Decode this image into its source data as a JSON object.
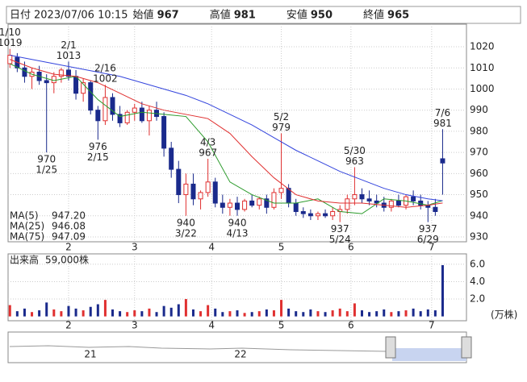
{
  "header": [
    {
      "label": "日付",
      "value": "2023/07/06 10:15"
    },
    {
      "label": "始値",
      "value": 967
    },
    {
      "label": "高値",
      "value": 981
    },
    {
      "label": "安値",
      "value": 950
    },
    {
      "label": "終値",
      "value": 965
    }
  ],
  "chart_data": [
    {
      "type": "candlestick",
      "ylim": [
        927.7,
        1030.7
      ],
      "yticks": [
        930,
        940,
        950,
        960,
        970,
        980,
        990,
        1000,
        1010,
        1020
      ],
      "xlim": [
        -0.5,
        124.5
      ],
      "xticks": [
        {
          "value": 16,
          "label": "2"
        },
        {
          "value": 34,
          "label": "3"
        },
        {
          "value": 55,
          "label": "4"
        },
        {
          "value": 74,
          "label": "5"
        },
        {
          "value": 93,
          "label": "6"
        },
        {
          "value": 115,
          "label": "7"
        }
      ],
      "up_color": "#e03030",
      "down_color": "#1a2a8c",
      "x": [
        0,
        2,
        4,
        6,
        8,
        10,
        12,
        14,
        16,
        18,
        20,
        22,
        24,
        26,
        28,
        30,
        32,
        34,
        36,
        38,
        40,
        42,
        44,
        46,
        48,
        50,
        52,
        54,
        56,
        58,
        60,
        62,
        64,
        66,
        68,
        70,
        72,
        74,
        76,
        78,
        80,
        82,
        84,
        86,
        88,
        90,
        92,
        94,
        96,
        98,
        100,
        102,
        104,
        106,
        108,
        110,
        112,
        114,
        116,
        118
      ],
      "open": [
        1012,
        1015,
        1010,
        1006,
        1008,
        1004,
        1003,
        1006,
        1009,
        1006,
        998,
        1003,
        990,
        985,
        996,
        988,
        984,
        989,
        991,
        985,
        990,
        987,
        972,
        962,
        950,
        955,
        948,
        951,
        956,
        946,
        944,
        946,
        943,
        947,
        945,
        948,
        944,
        951,
        953,
        946,
        942,
        941,
        940,
        941,
        940,
        942,
        943,
        948,
        950,
        948,
        947,
        946,
        944,
        947,
        945,
        949,
        947,
        945,
        944,
        967
      ],
      "high": [
        1019,
        1017,
        1013,
        1010,
        1011,
        1007,
        1008,
        1010,
        1013,
        1009,
        1005,
        1004,
        992,
        1002,
        998,
        992,
        990,
        993,
        994,
        992,
        994,
        989,
        975,
        966,
        960,
        960,
        952,
        967,
        958,
        950,
        948,
        949,
        948,
        950,
        949,
        950,
        953,
        979,
        955,
        948,
        944,
        943,
        942,
        943,
        944,
        945,
        950,
        963,
        953,
        952,
        950,
        949,
        948,
        950,
        950,
        952,
        950,
        947,
        948,
        981
      ],
      "low": [
        1010,
        1008,
        1003,
        1000,
        1002,
        970,
        998,
        1003,
        1004,
        995,
        994,
        988,
        976,
        983,
        985,
        982,
        983,
        985,
        984,
        978,
        985,
        968,
        958,
        946,
        940,
        945,
        943,
        949,
        944,
        941,
        940,
        940,
        942,
        944,
        943,
        941,
        943,
        948,
        944,
        940,
        939,
        938,
        938,
        939,
        938,
        937,
        941,
        945,
        946,
        945,
        944,
        942,
        942,
        944,
        943,
        945,
        943,
        937,
        940,
        950
      ],
      "close": [
        1016,
        1010,
        1006,
        1008,
        1004,
        1003,
        1006,
        1009,
        1006,
        998,
        1003,
        990,
        985,
        996,
        988,
        984,
        989,
        991,
        985,
        990,
        987,
        972,
        962,
        950,
        955,
        948,
        951,
        956,
        946,
        944,
        946,
        943,
        947,
        945,
        948,
        944,
        951,
        953,
        946,
        942,
        941,
        940,
        941,
        940,
        942,
        943,
        948,
        950,
        948,
        947,
        946,
        944,
        947,
        945,
        949,
        947,
        945,
        944,
        942,
        965
      ],
      "series": [
        {
          "name": "MA(5)",
          "color": "#2a9a2a",
          "value_label": "947.20",
          "x": [
            0,
            6,
            12,
            18,
            24,
            30,
            36,
            42,
            48,
            54,
            60,
            66,
            72,
            78,
            84,
            90,
            96,
            102,
            108,
            114,
            118
          ],
          "values": [
            1012,
            1007,
            1004,
            1006,
            995,
            987,
            989,
            988,
            987,
            975,
            956,
            950,
            946,
            946,
            948,
            942,
            941,
            948,
            947,
            945,
            947.2
          ]
        },
        {
          "name": "MA(25)",
          "color": "#e03030",
          "value_label": "946.08",
          "x": [
            0,
            6,
            12,
            18,
            24,
            30,
            36,
            42,
            48,
            54,
            60,
            66,
            72,
            78,
            84,
            90,
            96,
            102,
            108,
            114,
            118
          ],
          "values": [
            1014,
            1010,
            1007,
            1006,
            1003,
            998,
            993,
            990,
            988,
            986,
            979,
            968,
            958,
            950,
            947,
            946,
            946,
            945,
            944,
            945,
            946.08
          ]
        },
        {
          "name": "MA(75)",
          "color": "#3344dd",
          "value_label": "947.09",
          "x": [
            0,
            6,
            12,
            18,
            24,
            30,
            36,
            42,
            48,
            54,
            60,
            66,
            72,
            78,
            84,
            90,
            96,
            102,
            108,
            114,
            118
          ],
          "values": [
            1016,
            1014,
            1012,
            1010,
            1008,
            1006,
            1003,
            1000,
            997,
            993,
            988,
            983,
            977,
            971,
            966,
            961,
            957,
            953,
            950,
            948,
            947.09
          ]
        }
      ],
      "annotations": [
        {
          "x": 0,
          "date": "1/10",
          "value": 1019,
          "position": "above"
        },
        {
          "x": 16,
          "date": "2/1",
          "value": 1013,
          "position": "above"
        },
        {
          "x": 26,
          "date": "2/16",
          "value": 1002,
          "position": "above"
        },
        {
          "x": 10,
          "date": "1/25",
          "value": 970,
          "position": "below"
        },
        {
          "x": 24,
          "date": "2/15",
          "value": 976,
          "position": "below"
        },
        {
          "x": 54,
          "date": "4/3",
          "value": 967,
          "position": "above"
        },
        {
          "x": 74,
          "date": "5/2",
          "value": 979,
          "position": "above"
        },
        {
          "x": 94,
          "date": "5/30",
          "value": 963,
          "position": "above"
        },
        {
          "x": 118,
          "date": "7/6",
          "value": 981,
          "position": "above"
        },
        {
          "x": 48,
          "date": "3/22",
          "value": 940,
          "position": "below"
        },
        {
          "x": 62,
          "date": "4/13",
          "value": 940,
          "position": "below"
        },
        {
          "x": 90,
          "date": "5/24",
          "value": 937,
          "position": "below"
        },
        {
          "x": 114,
          "date": "6/29",
          "value": 937,
          "position": "below"
        }
      ]
    },
    {
      "type": "bar",
      "title": "出来高",
      "subtitle": "59,000株",
      "unit_label": "(万株)",
      "ylim": [
        -0.5,
        7.2
      ],
      "yticks": [
        {
          "value": 2,
          "label": "2.0"
        },
        {
          "value": 4,
          "label": "4.0"
        },
        {
          "value": 6,
          "label": "6.0"
        }
      ],
      "values": [
        1.3,
        0.6,
        0.9,
        0.5,
        0.7,
        1.6,
        0.8,
        0.6,
        1.2,
        0.9,
        0.7,
        1.1,
        1.4,
        1.9,
        0.8,
        0.6,
        0.5,
        0.7,
        0.6,
        0.9,
        0.5,
        1.2,
        1.0,
        1.4,
        2.0,
        0.8,
        0.6,
        1.3,
        0.9,
        0.5,
        0.6,
        0.7,
        0.4,
        0.5,
        0.6,
        0.8,
        0.7,
        1.9,
        0.9,
        0.6,
        0.5,
        0.8,
        0.6,
        0.5,
        0.7,
        0.9,
        0.6,
        1.5,
        0.7,
        0.5,
        0.6,
        0.8,
        0.5,
        0.6,
        0.7,
        0.9,
        0.6,
        0.8,
        0.7,
        5.9
      ]
    }
  ],
  "navigator": {
    "labels": [
      "21",
      "22"
    ]
  }
}
